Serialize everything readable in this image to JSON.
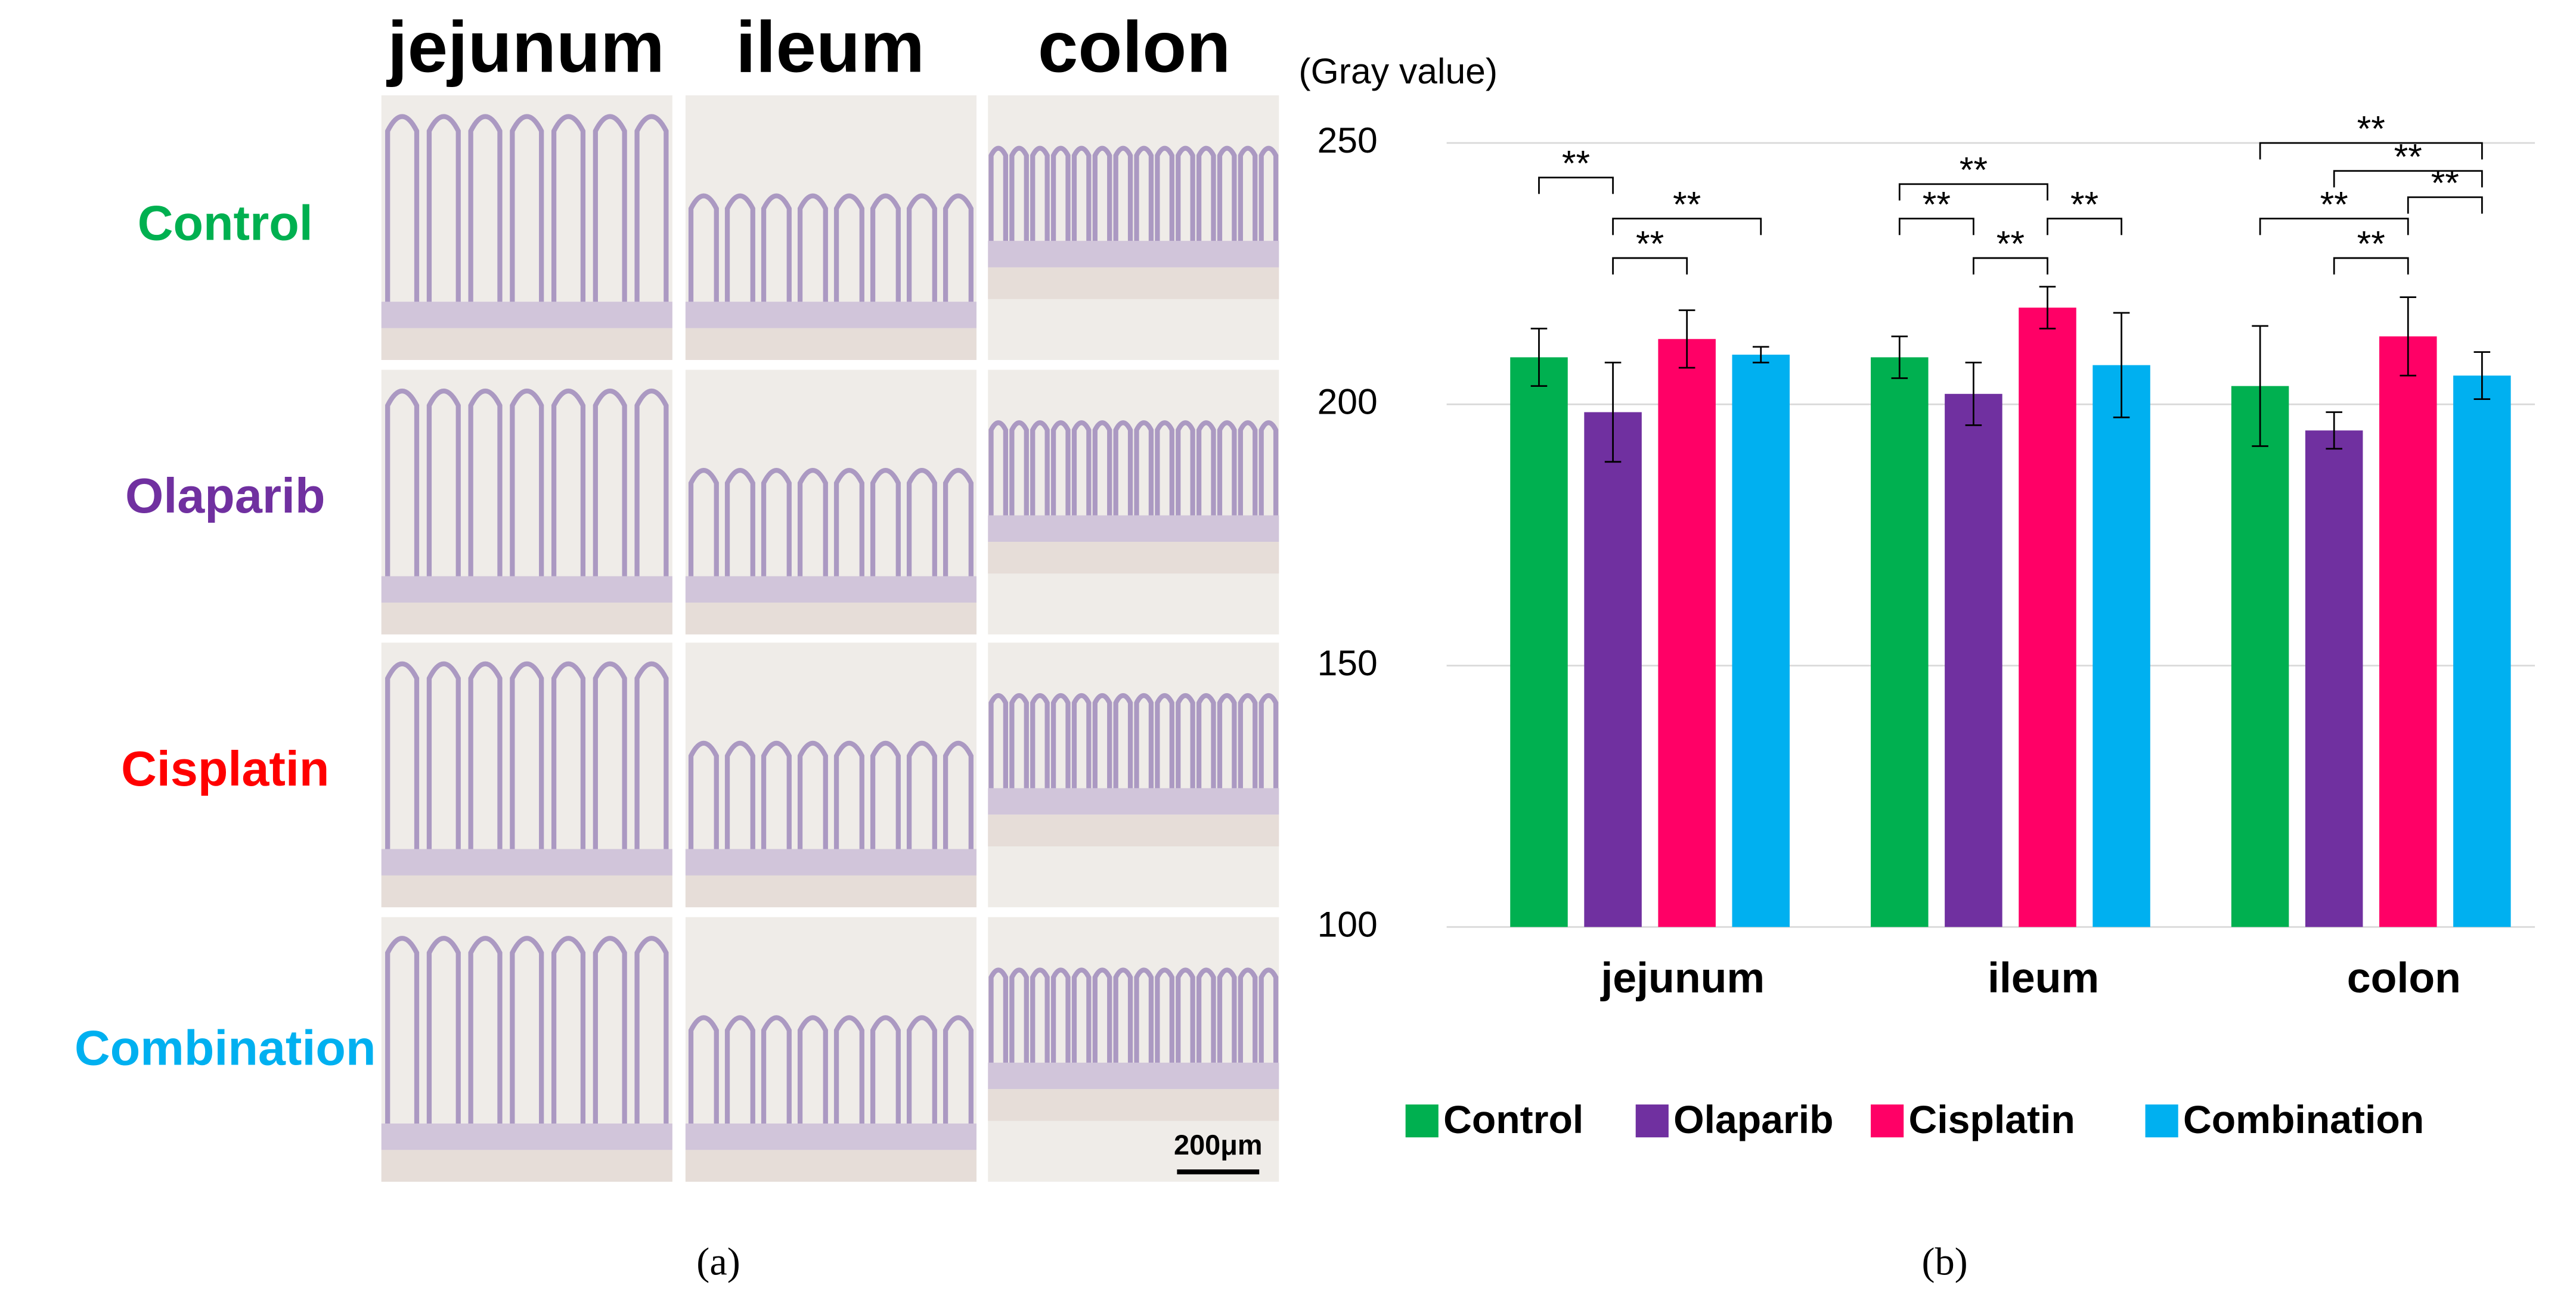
{
  "panel_a": {
    "columns": [
      "jejunum",
      "ileum",
      "colon"
    ],
    "rows": [
      {
        "label": "Control",
        "color": "#00b050"
      },
      {
        "label": "Olaparib",
        "color": "#7030a0"
      },
      {
        "label": "Cisplatin",
        "color": "#ff0000"
      },
      {
        "label": "Combination",
        "color": "#00b0f0"
      }
    ],
    "scale_bar": "200μm",
    "caption": "(a)"
  },
  "chart_data": {
    "type": "bar",
    "y_label": "(Gray value)",
    "categories": [
      "jejunum",
      "ileum",
      "colon"
    ],
    "series": [
      {
        "name": "Control",
        "color": "#00b050",
        "values": [
          209,
          209,
          203.5
        ],
        "errors": [
          5.5,
          4,
          11.5
        ]
      },
      {
        "name": "Olaparib",
        "color": "#7030a0",
        "values": [
          198.5,
          202,
          195
        ],
        "errors": [
          9.5,
          6,
          3.5
        ]
      },
      {
        "name": "Cisplatin",
        "color": "#ff0066",
        "values": [
          212.5,
          218.5,
          213
        ],
        "errors": [
          5.5,
          4,
          7.5
        ]
      },
      {
        "name": "Combination",
        "color": "#00b0f0",
        "values": [
          209.5,
          207.5,
          205.5
        ],
        "errors": [
          1.5,
          10,
          4.5
        ]
      }
    ],
    "ylim": [
      100,
      250
    ],
    "yticks": [
      100,
      150,
      200,
      250
    ],
    "grid": true,
    "legend": "bottom",
    "annotations": [
      {
        "text": "**",
        "category": 0,
        "from": 0,
        "to": 1
      },
      {
        "text": "**",
        "category": 0,
        "from": 1,
        "to": 3
      },
      {
        "text": "**",
        "category": 0,
        "from": 1,
        "to": 2
      },
      {
        "text": "**",
        "category": 1,
        "from": 0,
        "to": 2
      },
      {
        "text": "**",
        "category": 1,
        "from": 0,
        "to": 1
      },
      {
        "text": "**",
        "category": 1,
        "from": 1,
        "to": 2
      },
      {
        "text": "**",
        "category": 1,
        "from": 2,
        "to": 3
      },
      {
        "text": "**",
        "category": 2,
        "from": 0,
        "to": 3
      },
      {
        "text": "**",
        "category": 2,
        "from": 1,
        "to": 3
      },
      {
        "text": "**",
        "category": 2,
        "from": 2,
        "to": 3
      },
      {
        "text": "**",
        "category": 2,
        "from": 0,
        "to": 2
      },
      {
        "text": "**",
        "category": 2,
        "from": 1,
        "to": 2
      }
    ],
    "caption": "(b)"
  }
}
